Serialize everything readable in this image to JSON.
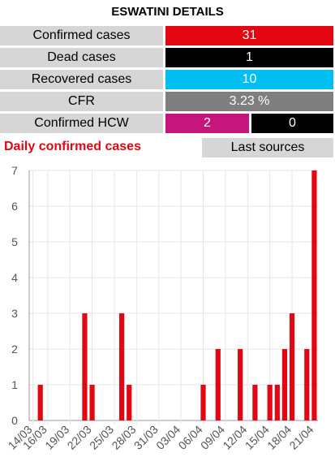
{
  "title": "ESWATINI DETAILS",
  "stats": {
    "confirmed": {
      "label": "Confirmed cases",
      "value": "31",
      "color": "#e30613"
    },
    "dead": {
      "label": "Dead cases",
      "value": "1",
      "color": "#000000"
    },
    "recovered": {
      "label": "Recovered cases",
      "value": "10",
      "color": "#00c0f3"
    },
    "cfr": {
      "label": "CFR",
      "value": "3.23 %",
      "color": "#7f7f7f"
    },
    "hcw": {
      "label": "Confirmed HCW",
      "value1": "2",
      "value2": "0",
      "color1": "#c6157c",
      "color2": "#000000"
    }
  },
  "daily": {
    "title": "Daily confirmed cases",
    "title_color": "#e30613"
  },
  "sources_button": "Last sources",
  "chart_data": {
    "type": "bar",
    "bar_color": "#e30613",
    "ylim": [
      0,
      7
    ],
    "yticks": [
      0,
      1,
      2,
      3,
      4,
      5,
      6,
      7
    ],
    "x_tick_labels": [
      "14/03",
      "16/03",
      "19/03",
      "22/03",
      "25/03",
      "28/03",
      "31/03",
      "03/04",
      "06/04",
      "09/04",
      "12/04",
      "15/04",
      "18/04",
      "21/04"
    ],
    "dates": [
      "14/03",
      "15/03",
      "16/03",
      "17/03",
      "18/03",
      "19/03",
      "20/03",
      "21/03",
      "22/03",
      "23/03",
      "24/03",
      "25/03",
      "26/03",
      "27/03",
      "28/03",
      "29/03",
      "30/03",
      "31/03",
      "01/04",
      "02/04",
      "03/04",
      "04/04",
      "05/04",
      "06/04",
      "07/04",
      "08/04",
      "09/04",
      "10/04",
      "11/04",
      "12/04",
      "13/04",
      "14/04",
      "15/04",
      "16/04",
      "17/04",
      "18/04",
      "19/04",
      "20/04",
      "21/04"
    ],
    "values": [
      0,
      1,
      0,
      0,
      0,
      0,
      0,
      3,
      1,
      0,
      0,
      0,
      3,
      1,
      0,
      0,
      0,
      0,
      0,
      0,
      0,
      0,
      0,
      1,
      0,
      2,
      0,
      0,
      2,
      0,
      1,
      0,
      1,
      1,
      2,
      3,
      0,
      2,
      7
    ]
  }
}
